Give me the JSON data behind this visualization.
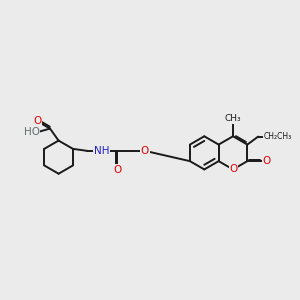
{
  "bg_color": "#ebebeb",
  "bond_color": "#1a1a1a",
  "bond_width": 1.4,
  "dbo": 0.055,
  "atom_colors": {
    "O": "#e00000",
    "N": "#2020cc",
    "H_gray": "#607070",
    "C": "#1a1a1a"
  },
  "font_size": 7.5,
  "fig_size": [
    3.0,
    3.0
  ],
  "dpi": 100,
  "xlim": [
    0,
    10.5
  ],
  "ylim": [
    2.5,
    8.0
  ]
}
